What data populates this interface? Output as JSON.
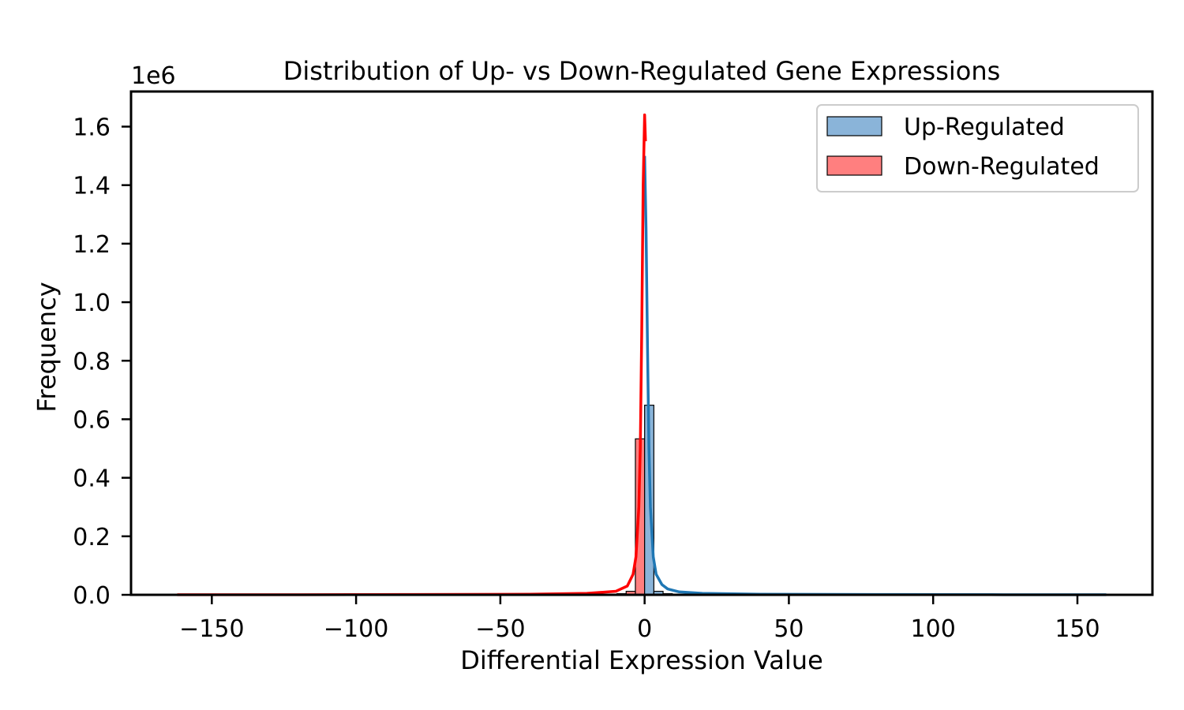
{
  "chart_data": {
    "type": "histogram",
    "title": "Distribution of Up- vs Down-Regulated Gene Expressions",
    "xlabel": "Differential Expression Value",
    "ylabel": "Frequency",
    "y_offset_text": "1e6",
    "xlim": [
      -178,
      176
    ],
    "ylim": [
      0,
      1.72
    ],
    "x_ticks": [
      -150,
      -100,
      -50,
      0,
      50,
      100,
      150
    ],
    "x_tick_labels": [
      "−150",
      "−100",
      "−50",
      "0",
      "50",
      "100",
      "150"
    ],
    "y_ticks": [
      0.0,
      0.2,
      0.4,
      0.6,
      0.8,
      1.0,
      1.2,
      1.4,
      1.6
    ],
    "y_tick_labels": [
      "0.0",
      "0.2",
      "0.4",
      "0.6",
      "0.8",
      "1.0",
      "1.2",
      "1.4",
      "1.6"
    ],
    "y_units": "millions",
    "legend_position": "upper right",
    "series": [
      {
        "name": "Up-Regulated",
        "bar_color": "#8ab4d9",
        "line_color": "#1f77b4",
        "bins": [
          {
            "x0": 0,
            "x1": 3.2,
            "value": 0.648
          },
          {
            "x0": 3.2,
            "x1": 6.4,
            "value": 0.012
          },
          {
            "x0": 6.4,
            "x1": 9.6,
            "value": 0.004
          },
          {
            "x0": 9.6,
            "x1": 12.8,
            "value": 0.002
          }
        ],
        "kde": {
          "x": [
            0,
            0.5,
            1,
            1.5,
            2,
            3,
            4,
            6,
            8,
            12,
            20,
            40,
            80,
            120,
            160
          ],
          "y": [
            1.5,
            1.25,
            0.85,
            0.5,
            0.3,
            0.13,
            0.07,
            0.035,
            0.02,
            0.01,
            0.005,
            0.002,
            0.001,
            0.0005,
            0.0003
          ]
        }
      },
      {
        "name": "Down-Regulated",
        "bar_color": "#ff7f7f",
        "line_color": "#ff0000",
        "bins": [
          {
            "x0": -3.2,
            "x1": 0,
            "value": 0.533
          },
          {
            "x0": -6.4,
            "x1": -3.2,
            "value": 0.012
          },
          {
            "x0": -9.6,
            "x1": -6.4,
            "value": 0.004
          }
        ],
        "kde": {
          "x": [
            -162,
            -120,
            -80,
            -40,
            -20,
            -10,
            -6,
            -4,
            -3,
            -2,
            -1.5,
            -1,
            -0.5,
            0,
            0.3
          ],
          "y": [
            0.0002,
            0.0004,
            0.001,
            0.002,
            0.005,
            0.012,
            0.03,
            0.07,
            0.13,
            0.3,
            0.5,
            0.9,
            1.4,
            1.64,
            1.55
          ]
        }
      }
    ]
  }
}
